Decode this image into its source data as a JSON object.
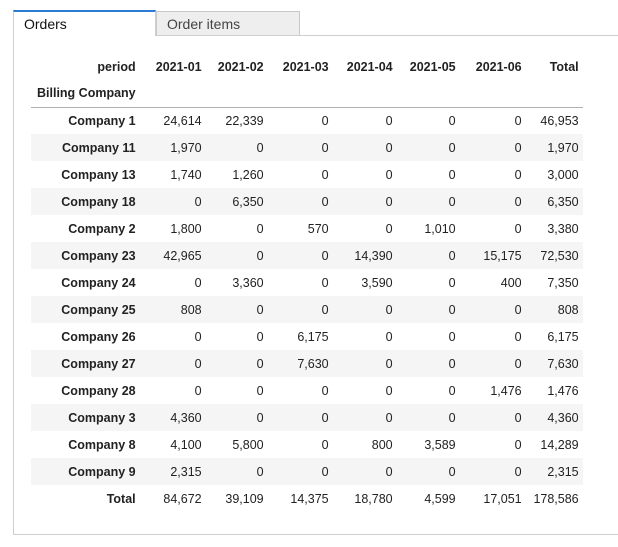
{
  "tabs": [
    {
      "label": "Orders",
      "active": true
    },
    {
      "label": "Order items",
      "active": false
    }
  ],
  "pivot": {
    "period_label": "period",
    "row_dim_label": "Billing Company",
    "columns": [
      "2021-01",
      "2021-02",
      "2021-03",
      "2021-04",
      "2021-05",
      "2021-06",
      "Total"
    ],
    "rows": [
      {
        "name": "Company 1",
        "values": [
          "24,614",
          "22,339",
          "0",
          "0",
          "0",
          "0",
          "46,953"
        ]
      },
      {
        "name": "Company 11",
        "values": [
          "1,970",
          "0",
          "0",
          "0",
          "0",
          "0",
          "1,970"
        ]
      },
      {
        "name": "Company 13",
        "values": [
          "1,740",
          "1,260",
          "0",
          "0",
          "0",
          "0",
          "3,000"
        ]
      },
      {
        "name": "Company 18",
        "values": [
          "0",
          "6,350",
          "0",
          "0",
          "0",
          "0",
          "6,350"
        ]
      },
      {
        "name": "Company 2",
        "values": [
          "1,800",
          "0",
          "570",
          "0",
          "1,010",
          "0",
          "3,380"
        ]
      },
      {
        "name": "Company 23",
        "values": [
          "42,965",
          "0",
          "0",
          "14,390",
          "0",
          "15,175",
          "72,530"
        ]
      },
      {
        "name": "Company 24",
        "values": [
          "0",
          "3,360",
          "0",
          "3,590",
          "0",
          "400",
          "7,350"
        ]
      },
      {
        "name": "Company 25",
        "values": [
          "808",
          "0",
          "0",
          "0",
          "0",
          "0",
          "808"
        ]
      },
      {
        "name": "Company 26",
        "values": [
          "0",
          "0",
          "6,175",
          "0",
          "0",
          "0",
          "6,175"
        ]
      },
      {
        "name": "Company 27",
        "values": [
          "0",
          "0",
          "7,630",
          "0",
          "0",
          "0",
          "7,630"
        ]
      },
      {
        "name": "Company 28",
        "values": [
          "0",
          "0",
          "0",
          "0",
          "0",
          "1,476",
          "1,476"
        ]
      },
      {
        "name": "Company 3",
        "values": [
          "4,360",
          "0",
          "0",
          "0",
          "0",
          "0",
          "4,360"
        ]
      },
      {
        "name": "Company 8",
        "values": [
          "4,100",
          "5,800",
          "0",
          "800",
          "3,589",
          "0",
          "14,289"
        ]
      },
      {
        "name": "Company 9",
        "values": [
          "2,315",
          "0",
          "0",
          "0",
          "0",
          "0",
          "2,315"
        ]
      }
    ],
    "total": {
      "name": "Total",
      "values": [
        "84,672",
        "39,109",
        "14,375",
        "18,780",
        "4,599",
        "17,051",
        "178,586"
      ]
    }
  },
  "colors": {
    "active_tab_accent": "#2a7bd4",
    "stripe": "#f5f5f5"
  }
}
